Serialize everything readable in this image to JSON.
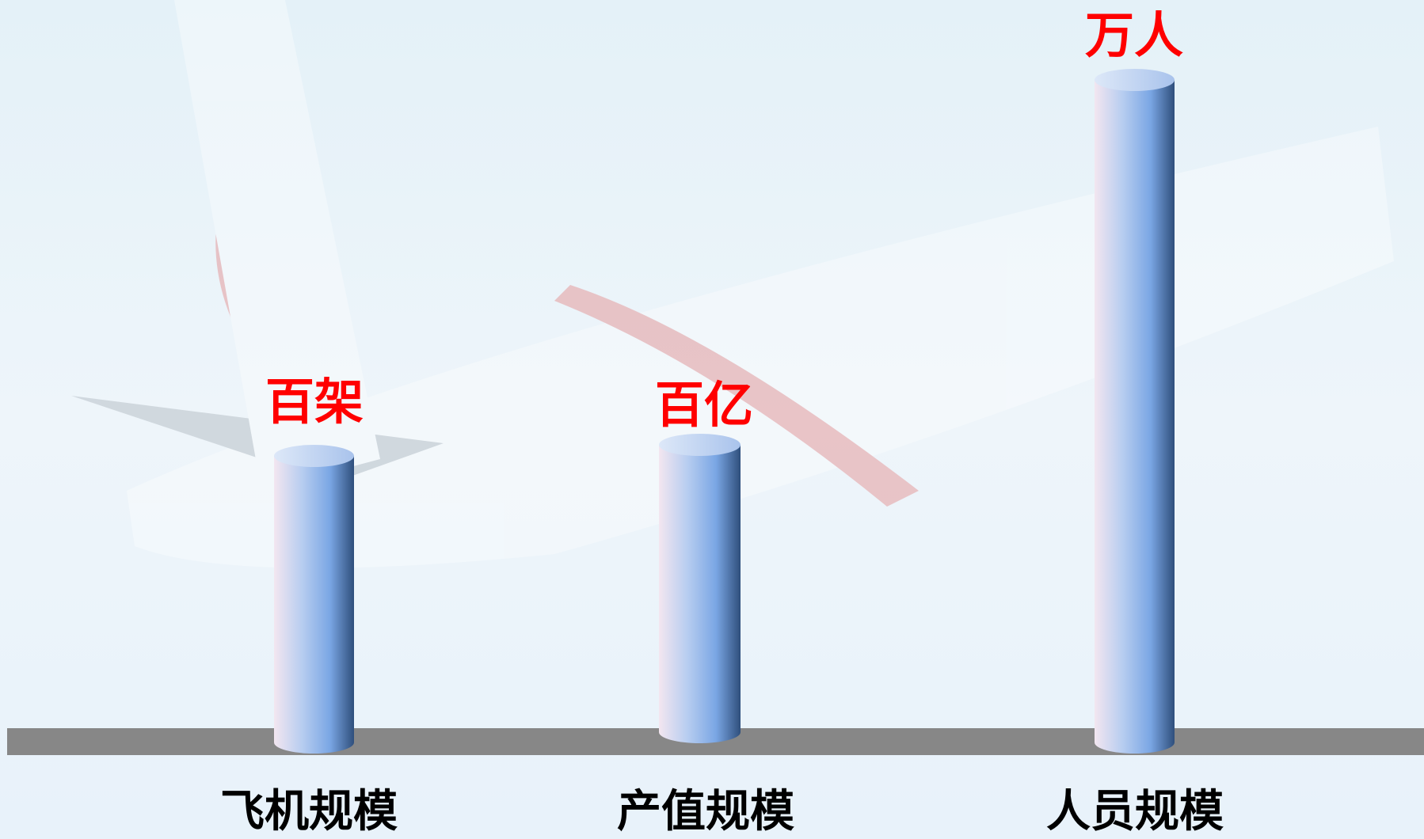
{
  "columns": [
    {
      "label": "百架",
      "category": "飞机规模"
    },
    {
      "label": "百亿",
      "category": "产值规模"
    },
    {
      "label": "万人",
      "category": "人员规模"
    }
  ]
}
